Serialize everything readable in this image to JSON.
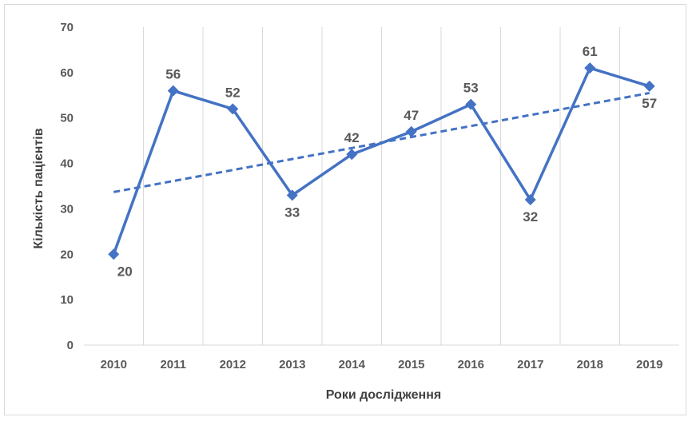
{
  "chart_data": {
    "type": "line",
    "title": "",
    "xlabel": "Роки дослідження",
    "ylabel": "Кількість пацієнтів",
    "categories": [
      "2010",
      "2011",
      "2012",
      "2013",
      "2014",
      "2015",
      "2016",
      "2017",
      "2018",
      "2019"
    ],
    "series": [
      {
        "name": "",
        "values": [
          20,
          56,
          52,
          33,
          42,
          47,
          53,
          32,
          61,
          57
        ],
        "color": "#4472c4",
        "marker": "diamond",
        "data_labels": true
      }
    ],
    "trendline": {
      "type": "linear",
      "style": "dashed",
      "color": "#4472c4",
      "start": 33.7,
      "end": 55.5
    },
    "ylim": [
      0,
      70
    ],
    "yticks": [
      0,
      10,
      20,
      30,
      40,
      50,
      60,
      70
    ],
    "grid": {
      "vertical": true,
      "horizontal": false
    },
    "legend": "none"
  }
}
